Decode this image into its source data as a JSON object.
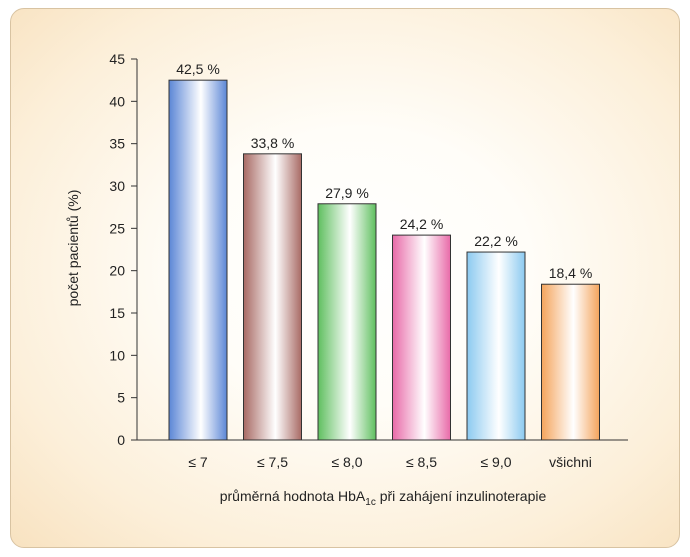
{
  "chart_data": {
    "type": "bar",
    "categories": [
      "≤ 7",
      "≤ 7,5",
      "≤ 8,0",
      "≤ 8,5",
      "≤ 9,0",
      "všichni"
    ],
    "values": [
      42.5,
      33.8,
      27.9,
      24.2,
      22.2,
      18.4
    ],
    "data_labels": [
      "42,5 %",
      "33,8 %",
      "27,9 %",
      "24,2 %",
      "22,2 %",
      "18,4 %"
    ],
    "ylabel": "počet pacientů (%)",
    "xlabel": {
      "prefix": "průměrná hodnota HbA",
      "subscript": "1c",
      "suffix": " při zahájení inzulinoterapie"
    },
    "ylim": [
      0,
      45
    ],
    "yticks": [
      0,
      5,
      10,
      15,
      20,
      25,
      30,
      35,
      40,
      45
    ],
    "grid": false,
    "legend": "none",
    "bar_colors": [
      "#5b86d6",
      "#a86a64",
      "#5fbf5f",
      "#e86aa8",
      "#8ccaf0",
      "#f4a45c"
    ]
  }
}
